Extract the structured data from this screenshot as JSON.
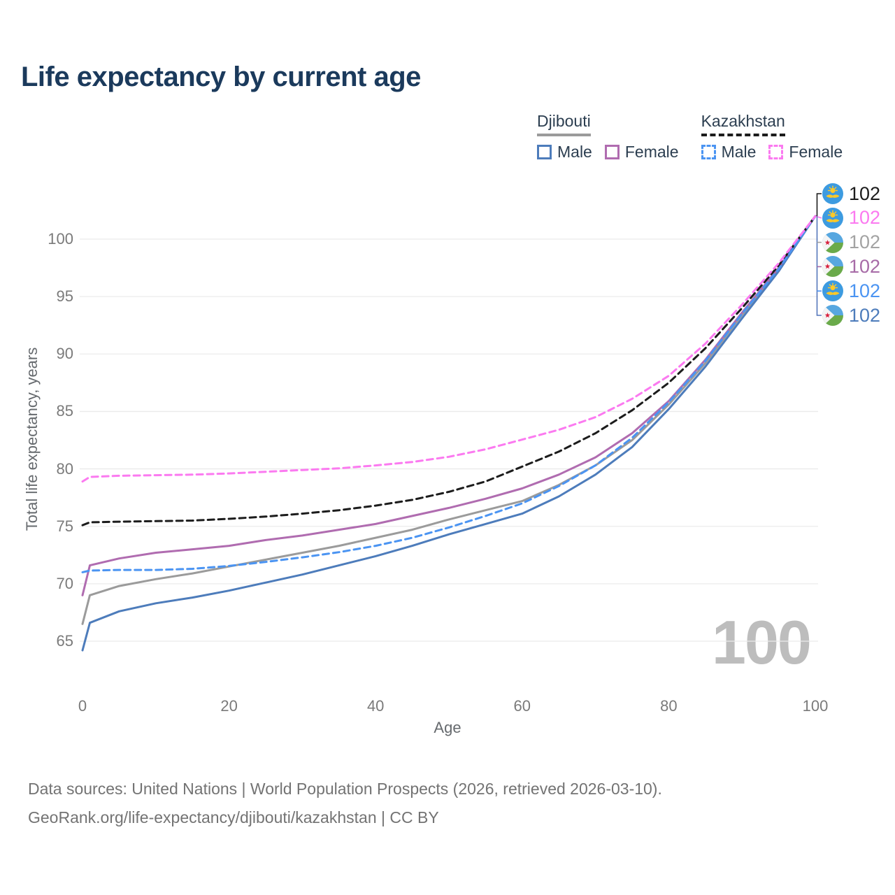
{
  "title": "Life expectancy by current age",
  "watermark": "100",
  "legend": {
    "groups": [
      {
        "country": "Djibouti",
        "style": "solid",
        "underline": {
          "color": "#9b9b9b",
          "style": "solid"
        },
        "items": [
          {
            "label": "Male",
            "color": "#4d7cbb"
          },
          {
            "label": "Female",
            "color": "#b06cb0"
          }
        ]
      },
      {
        "country": "Kazakhstan",
        "style": "dashed",
        "underline": {
          "color": "#1c1c1c",
          "style": "dashed"
        },
        "items": [
          {
            "label": "Male",
            "color": "#4b94f2"
          },
          {
            "label": "Female",
            "color": "#fb7af0"
          }
        ]
      }
    ]
  },
  "end_labels": [
    {
      "flag": "kazakhstan",
      "value": "102",
      "color": "#1c1c1c"
    },
    {
      "flag": "kazakhstan",
      "value": "102",
      "color": "#fb7af0"
    },
    {
      "flag": "djibouti",
      "value": "102",
      "color": "#a3a3a3"
    },
    {
      "flag": "djibouti",
      "value": "102",
      "color": "#a76ba7"
    },
    {
      "flag": "kazakhstan",
      "value": "102",
      "color": "#4b94f2"
    },
    {
      "flag": "djibouti",
      "value": "102",
      "color": "#4d7cbb"
    }
  ],
  "footer": {
    "line1": "Data sources: United Nations | World Population Prospects (2026, retrieved 2026-03-10).",
    "line2": "GeoRank.org/life-expectancy/djibouti/kazakhstan | CC BY"
  },
  "chart_data": {
    "type": "line",
    "title": "Life expectancy by current age",
    "xlabel": "Age",
    "ylabel": "Total life expectancy, years",
    "xlim": [
      0,
      100
    ],
    "ylim": [
      62,
      103
    ],
    "xticks": [
      0,
      20,
      40,
      60,
      80,
      100
    ],
    "yticks": [
      65,
      70,
      75,
      80,
      85,
      90,
      95,
      100
    ],
    "grid": true,
    "legend_position": "top-right",
    "x": [
      0,
      1,
      5,
      10,
      15,
      20,
      25,
      30,
      35,
      40,
      45,
      50,
      55,
      60,
      65,
      70,
      75,
      80,
      85,
      90,
      95,
      100
    ],
    "series": [
      {
        "name": "Djibouti All",
        "country": "Djibouti",
        "sex": "all",
        "color": "#9b9b9b",
        "dash": false,
        "values": [
          66.5,
          69.0,
          69.8,
          70.4,
          70.9,
          71.5,
          72.1,
          72.7,
          73.3,
          74.0,
          74.7,
          75.6,
          76.4,
          77.2,
          78.6,
          80.3,
          82.5,
          85.6,
          89.2,
          93.4,
          97.3,
          102
        ]
      },
      {
        "name": "Djibouti Female",
        "country": "Djibouti",
        "sex": "female",
        "color": "#b06cb0",
        "dash": false,
        "values": [
          69.0,
          71.6,
          72.2,
          72.7,
          73.0,
          73.3,
          73.8,
          74.2,
          74.7,
          75.2,
          75.9,
          76.6,
          77.4,
          78.3,
          79.5,
          81.0,
          83.1,
          85.9,
          89.5,
          93.6,
          97.5,
          102
        ]
      },
      {
        "name": "Djibouti Male",
        "country": "Djibouti",
        "sex": "male",
        "color": "#4d7cbb",
        "dash": false,
        "values": [
          64.2,
          66.6,
          67.6,
          68.3,
          68.8,
          69.4,
          70.1,
          70.8,
          71.6,
          72.4,
          73.3,
          74.3,
          75.2,
          76.1,
          77.6,
          79.5,
          81.9,
          85.2,
          88.9,
          93.1,
          97.2,
          102
        ]
      },
      {
        "name": "Kazakhstan All",
        "country": "Kazakhstan",
        "sex": "all",
        "color": "#1c1c1c",
        "dash": true,
        "values": [
          75.1,
          75.35,
          75.4,
          75.45,
          75.5,
          75.65,
          75.85,
          76.1,
          76.4,
          76.8,
          77.3,
          78.0,
          78.9,
          80.2,
          81.5,
          83.1,
          85.1,
          87.5,
          90.5,
          94.0,
          97.7,
          102
        ]
      },
      {
        "name": "Kazakhstan Male",
        "country": "Kazakhstan",
        "sex": "male",
        "color": "#4b94f2",
        "dash": true,
        "values": [
          71.0,
          71.15,
          71.2,
          71.2,
          71.3,
          71.55,
          71.9,
          72.3,
          72.75,
          73.3,
          74.0,
          74.9,
          75.9,
          77.0,
          78.5,
          80.3,
          82.7,
          85.8,
          89.4,
          93.5,
          97.4,
          102
        ]
      },
      {
        "name": "Kazakhstan Female",
        "country": "Kazakhstan",
        "sex": "female",
        "color": "#fb7af0",
        "dash": true,
        "values": [
          78.9,
          79.3,
          79.4,
          79.45,
          79.5,
          79.6,
          79.75,
          79.9,
          80.05,
          80.3,
          80.6,
          81.05,
          81.7,
          82.55,
          83.4,
          84.5,
          86.1,
          88.1,
          90.9,
          94.3,
          97.9,
          102
        ]
      }
    ]
  }
}
